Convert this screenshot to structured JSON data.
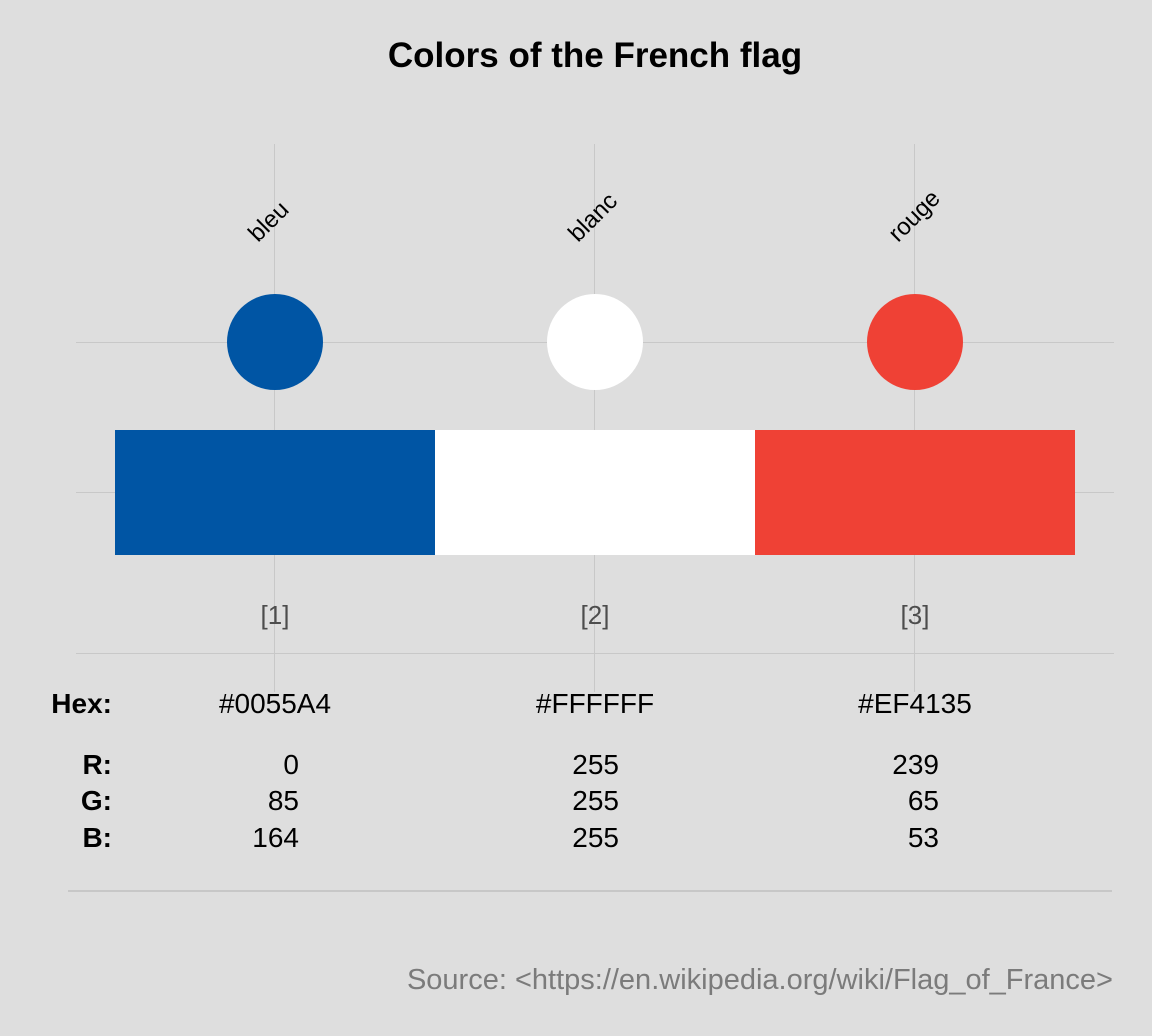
{
  "title": "Colors of the French flag",
  "columns": [
    {
      "name": "bleu",
      "index": "[1]",
      "hex": "#0055A4",
      "r": "0",
      "g": "85",
      "b": "164"
    },
    {
      "name": "blanc",
      "index": "[2]",
      "hex": "#FFFFFF",
      "r": "255",
      "g": "255",
      "b": "255"
    },
    {
      "name": "rouge",
      "index": "[3]",
      "hex": "#EF4135",
      "r": "239",
      "g": "65",
      "b": "53"
    }
  ],
  "row_labels": {
    "hex": "Hex:",
    "r": "R:",
    "g": "G:",
    "b": "B:"
  },
  "source": "Source: <https://en.wikipedia.org/wiki/Flag_of_France>",
  "palette": {
    "background": "#DEDEDE",
    "gridline": "#C8C8C8",
    "index_label_color": "#4D4D4D",
    "source_text_color": "#7B7B7B",
    "title_color": "#000000"
  },
  "chart_data": {
    "type": "table",
    "subtype": "color-swatch-palette",
    "title": "Colors of the French flag",
    "categories": [
      "bleu",
      "blanc",
      "rouge"
    ],
    "index_labels": [
      "[1]",
      "[2]",
      "[3]"
    ],
    "series": [
      {
        "name": "Hex",
        "values": [
          "#0055A4",
          "#FFFFFF",
          "#EF4135"
        ]
      },
      {
        "name": "R",
        "values": [
          0,
          255,
          239
        ]
      },
      {
        "name": "G",
        "values": [
          85,
          255,
          65
        ]
      },
      {
        "name": "B",
        "values": [
          164,
          255,
          53
        ]
      }
    ],
    "source": "Source: <https://en.wikipedia.org/wiki/Flag_of_France>",
    "layout": {
      "marks": [
        "one colored circle per category above a tricolor flag bar (three equal segments)",
        "category names rotated 45 degrees above circles",
        "bracketed index labels under the bar",
        "Hex / R / G / B value table below"
      ],
      "grid": "light gray vertical gridline per category and horizontal gridlines at circle row, bar row and table top",
      "legend": "none",
      "background": "#DEDEDE"
    }
  }
}
